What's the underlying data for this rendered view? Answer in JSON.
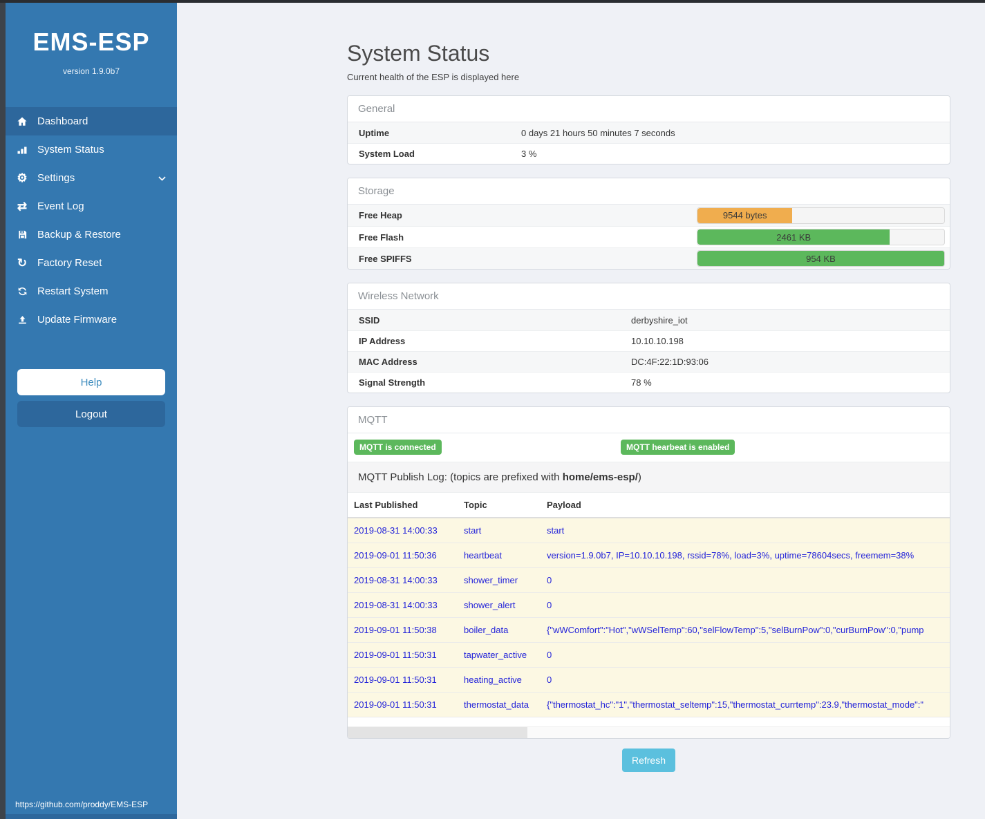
{
  "sidebar": {
    "title": "EMS-ESP",
    "version": "version 1.9.0b7",
    "items": [
      {
        "label": "Dashboard"
      },
      {
        "label": "System Status"
      },
      {
        "label": "Settings"
      },
      {
        "label": "Event Log"
      },
      {
        "label": "Backup & Restore"
      },
      {
        "label": "Factory Reset"
      },
      {
        "label": "Restart System"
      },
      {
        "label": "Update Firmware"
      }
    ],
    "help_label": "Help",
    "logout_label": "Logout",
    "footer_link": "https://github.com/proddy/EMS-ESP"
  },
  "header": {
    "title": "System Status",
    "subtitle": "Current health of the ESP is displayed here"
  },
  "panels": {
    "general": {
      "title": "General",
      "rows": [
        {
          "label": "Uptime",
          "value": "0 days 21 hours 50 minutes 7 seconds"
        },
        {
          "label": "System Load",
          "value": "3 %"
        }
      ]
    },
    "storage": {
      "title": "Storage",
      "rows": [
        {
          "label": "Free Heap",
          "bar_label": "9544 bytes",
          "percent": 38.5,
          "color": "#f0ad4e"
        },
        {
          "label": "Free Flash",
          "bar_label": "2461 KB",
          "percent": 78,
          "color": "#5cb85c"
        },
        {
          "label": "Free SPIFFS",
          "bar_label": "954 KB",
          "percent": 100,
          "color": "#5cb85c"
        }
      ]
    },
    "wireless": {
      "title": "Wireless Network",
      "rows": [
        {
          "label": "SSID",
          "value": "derbyshire_iot"
        },
        {
          "label": "IP Address",
          "value": "10.10.10.198"
        },
        {
          "label": "MAC Address",
          "value": "DC:4F:22:1D:93:06"
        },
        {
          "label": "Signal Strength",
          "value": "78 %"
        }
      ]
    },
    "mqtt": {
      "title": "MQTT",
      "badges": [
        "MQTT is connected",
        "MQTT hearbeat is enabled"
      ],
      "publish_log": {
        "prefix": "MQTT Publish Log: (topics are prefixed with ",
        "bold": "home/ems-esp/",
        "suffix": ")"
      },
      "table": {
        "headers": [
          "Last Published",
          "Topic",
          "Payload"
        ],
        "rows": [
          [
            "2019-08-31 14:00:33",
            "start",
            "start"
          ],
          [
            "2019-09-01 11:50:36",
            "heartbeat",
            "version=1.9.0b7, IP=10.10.10.198, rssid=78%, load=3%, uptime=78604secs, freemem=38%"
          ],
          [
            "2019-08-31 14:00:33",
            "shower_timer",
            "0"
          ],
          [
            "2019-08-31 14:00:33",
            "shower_alert",
            "0"
          ],
          [
            "2019-09-01 11:50:38",
            "boiler_data",
            "{\"wWComfort\":\"Hot\",\"wWSelTemp\":60,\"selFlowTemp\":5,\"selBurnPow\":0,\"curBurnPow\":0,\"pump"
          ],
          [
            "2019-09-01 11:50:31",
            "tapwater_active",
            "0"
          ],
          [
            "2019-09-01 11:50:31",
            "heating_active",
            "0"
          ],
          [
            "2019-09-01 11:50:31",
            "thermostat_data",
            "{\"thermostat_hc\":\"1\",\"thermostat_seltemp\":15,\"thermostat_currtemp\":23.9,\"thermostat_mode\":\""
          ]
        ]
      }
    }
  },
  "refresh_button": "Refresh",
  "colors": {
    "sidebar": "#3478b0",
    "sidebar_active": "#2d679c",
    "success": "#5cb85c",
    "warning": "#f0ad4e",
    "info": "#5bc0de"
  }
}
